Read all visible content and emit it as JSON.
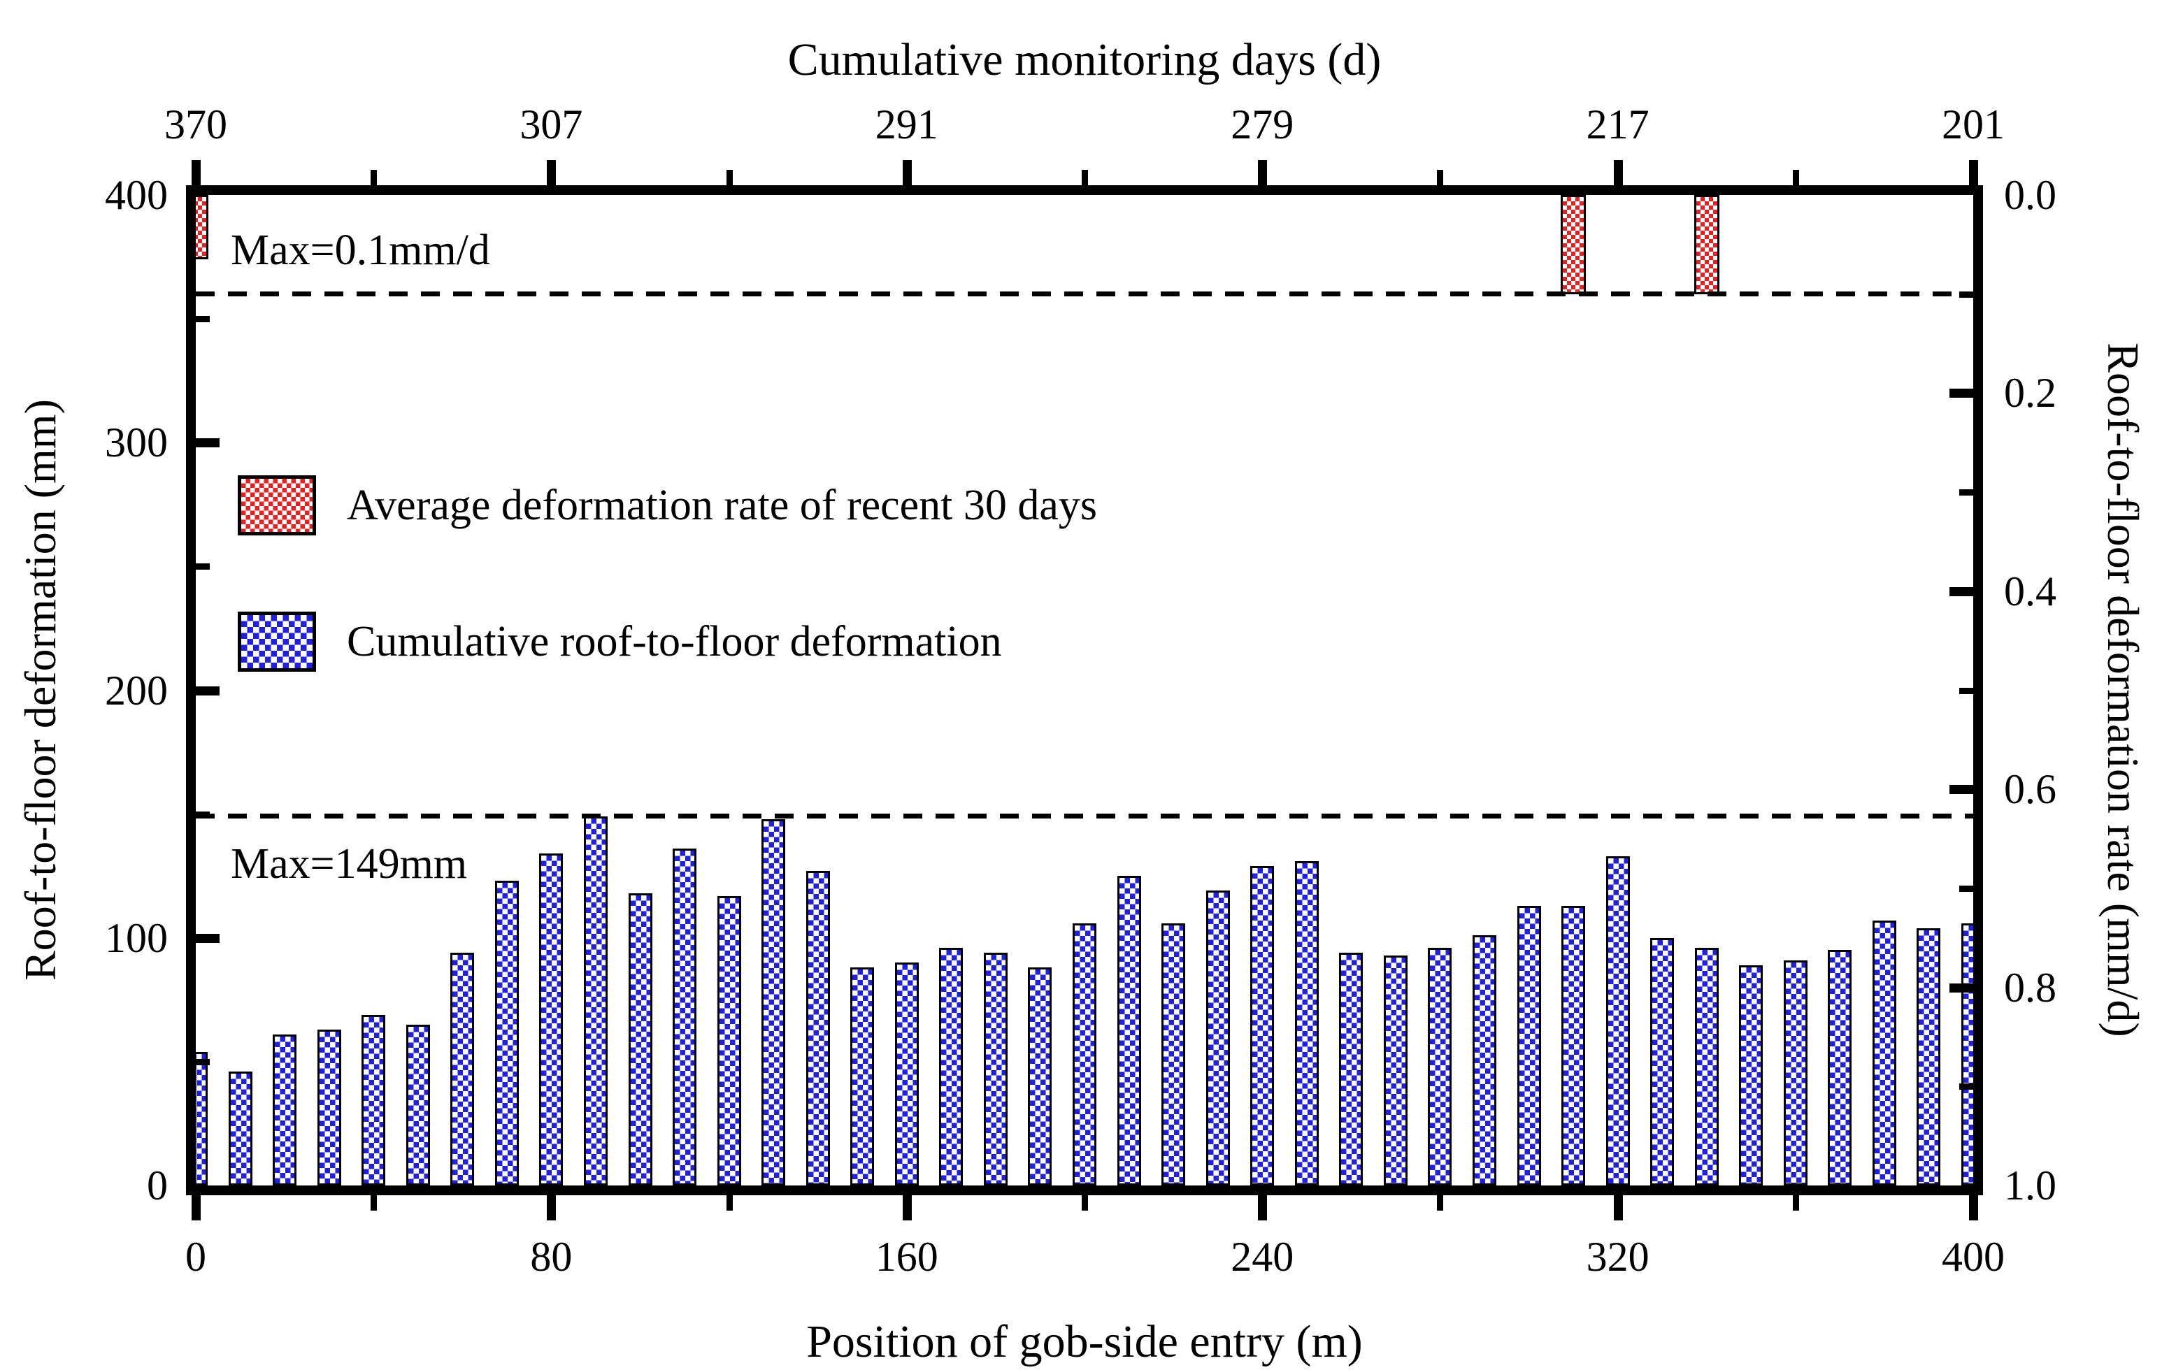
{
  "chart_data": {
    "type": "bar",
    "top_axis": {
      "title": "Cumulative monitoring days (d)",
      "tick_labels": [
        "370",
        "307",
        "291",
        "279",
        "217",
        "201"
      ],
      "tick_positions_m": [
        0,
        80,
        160,
        240,
        320,
        400
      ],
      "minor_tick_positions_m": [
        40,
        120,
        200,
        280,
        360
      ]
    },
    "x_axis": {
      "title": "Position of gob-side entry (m)",
      "tick_labels": [
        "0",
        "80",
        "160",
        "240",
        "320",
        "400"
      ],
      "tick_positions_m": [
        0,
        80,
        160,
        240,
        320,
        400
      ],
      "minor_tick_positions_m": [
        40,
        120,
        200,
        280,
        360
      ],
      "range_m": [
        0,
        400
      ]
    },
    "y_axis_left": {
      "title": "Roof-to-floor deformation (mm)",
      "tick_labels": [
        "0",
        "100",
        "200",
        "300",
        "400"
      ],
      "tick_values_mm": [
        0,
        100,
        200,
        300,
        400
      ],
      "minor_tick_values_mm": [
        50,
        150,
        250,
        350
      ],
      "range_mm": [
        0,
        400
      ]
    },
    "y_axis_right": {
      "title": "Roof-to-floor deformation rate (mm/d)",
      "tick_labels": [
        "0.0",
        "0.2",
        "0.4",
        "0.6",
        "0.8",
        "1.0"
      ],
      "tick_values": [
        0.0,
        0.2,
        0.4,
        0.6,
        0.8,
        1.0
      ],
      "minor_tick_values": [
        0.1,
        0.3,
        0.5,
        0.7,
        0.9
      ],
      "range_top_to_bottom": [
        0.0,
        1.0
      ]
    },
    "grid": "off",
    "series": [
      {
        "name": "Cumulative roof-to-floor deformation",
        "axis": "left",
        "unit": "mm",
        "color": "#2121dd",
        "positions_m": [
          0,
          10,
          20,
          30,
          40,
          50,
          60,
          70,
          80,
          90,
          100,
          110,
          120,
          130,
          140,
          150,
          160,
          170,
          180,
          190,
          200,
          210,
          220,
          230,
          240,
          250,
          260,
          270,
          280,
          290,
          300,
          310,
          320,
          330,
          340,
          350,
          360,
          370,
          380,
          390,
          400
        ],
        "values_mm": [
          54,
          46,
          61,
          63,
          69,
          65,
          94,
          123,
          134,
          149,
          118,
          136,
          117,
          148,
          127,
          88,
          90,
          96,
          94,
          88,
          106,
          125,
          106,
          119,
          129,
          131,
          94,
          93,
          96,
          101,
          113,
          113,
          133,
          100,
          96,
          89,
          91,
          95,
          107,
          104,
          106
        ]
      },
      {
        "name": "Average deformation rate of recent 30 days",
        "axis": "right",
        "unit": "mm/d",
        "color": "#e82020",
        "points": [
          {
            "position_m": 0,
            "rate_mm_per_d": 0.065
          },
          {
            "position_m": 310,
            "rate_mm_per_d": 0.1
          },
          {
            "position_m": 340,
            "rate_mm_per_d": 0.1
          }
        ]
      }
    ],
    "reference_lines": [
      {
        "label": "Max=0.1mm/d",
        "axis": "right",
        "value_mm_per_d": 0.1
      },
      {
        "label": "Max=149mm",
        "axis": "left",
        "value_mm": 149
      }
    ],
    "legend": {
      "position": "upper-left-inside",
      "items": [
        {
          "label": "Average deformation rate of recent 30 days",
          "color": "#e82020"
        },
        {
          "label": "Cumulative roof-to-floor deformation",
          "color": "#2121dd"
        }
      ]
    },
    "max_cumulative_deformation_mm": 149,
    "max_deformation_rate_mm_per_d": 0.1
  }
}
